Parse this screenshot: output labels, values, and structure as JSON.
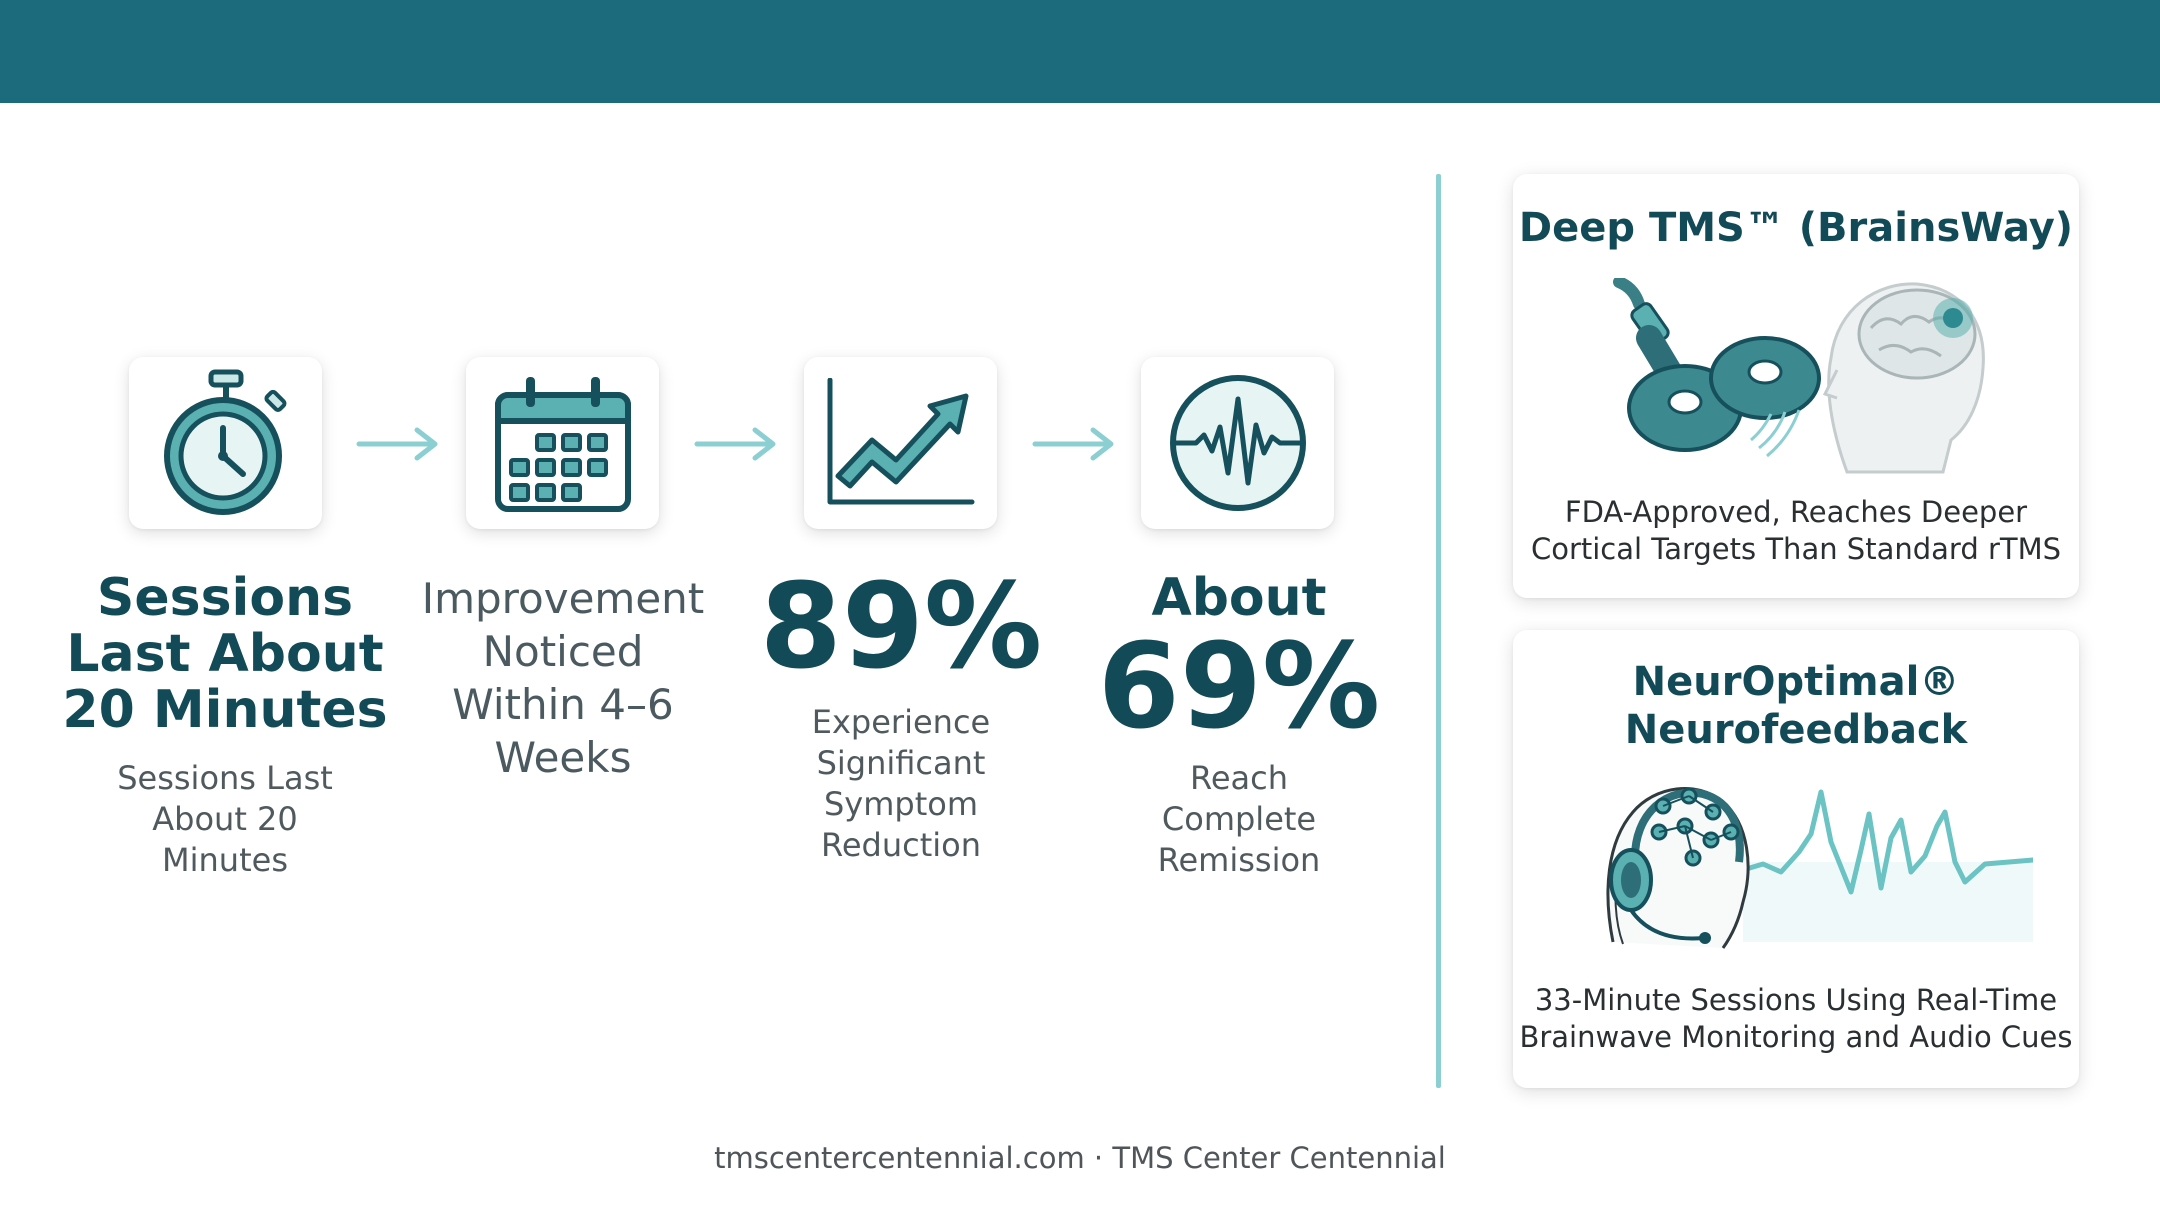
{
  "steps": [
    {
      "heading": "Sessions Last About 20 Minutes",
      "sub": "Sessions Last About 20 Minutes",
      "icon": "stopwatch-icon"
    },
    {
      "heading": "Improvement Noticed Within 4–6 Weeks",
      "icon": "calendar-icon"
    },
    {
      "stat": "89%",
      "sub": "Experience Significant Symptom Reduction",
      "icon": "trend-chart-icon"
    },
    {
      "stat_prefix": "About",
      "stat": "69%",
      "sub": "Reach Complete Remission",
      "icon": "brainwave-icon"
    }
  ],
  "panels": [
    {
      "title": "Deep TMS™ (BrainsWay)",
      "desc": "FDA-Approved, Reaches Deeper Cortical Targets Than Standard rTMS",
      "icon": "tms-coil-head-illustration"
    },
    {
      "title": "NeurOptimal® Neurofeedback",
      "desc": "33-Minute Sessions Using Real-Time Brainwave Monitoring and Audio Cues",
      "icon": "neurofeedback-headset-illustration"
    }
  ],
  "footer": "tmscentercentennial.com · TMS Center Centennial",
  "colors": {
    "header": "#1b6b7c",
    "accent": "#8ccfd2",
    "text_dark": "#134a57",
    "icon_fill": "#4fa7a9"
  }
}
